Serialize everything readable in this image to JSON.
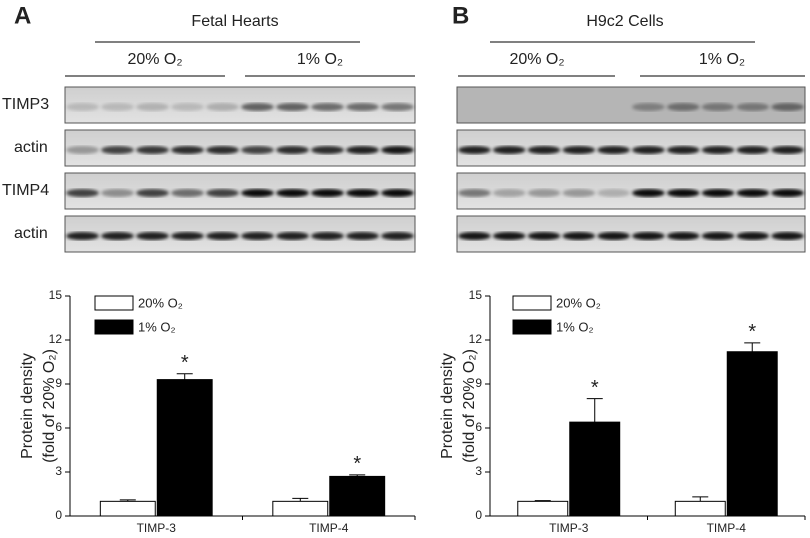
{
  "figure": {
    "panels": [
      {
        "label": "A",
        "title": "Fetal Hearts",
        "groups": [
          "20% O₂",
          "1% O₂"
        ],
        "blots": [
          "TIMP3",
          "actin",
          "TIMP4",
          "actin"
        ]
      },
      {
        "label": "B",
        "title": "H9c2 Cells",
        "groups": [
          "20% O₂",
          "1% O₂"
        ]
      }
    ]
  },
  "chart_data": [
    {
      "type": "bar",
      "ylabel": [
        "Protein density",
        "(fold of 20% O₂)"
      ],
      "categories": [
        "TIMP-3",
        "TIMP-4"
      ],
      "series": [
        {
          "name": "20% O₂",
          "color": "#ffffff",
          "values": [
            1.0,
            1.0
          ],
          "errors": [
            0.1,
            0.2
          ]
        },
        {
          "name": "1% O₂",
          "color": "#000000",
          "values": [
            9.3,
            2.7
          ],
          "errors": [
            0.4,
            0.1
          ],
          "annotations": [
            "*",
            "*"
          ]
        }
      ],
      "ylim": [
        0,
        15
      ],
      "yticks": [
        0,
        3,
        6,
        9,
        12,
        15
      ]
    },
    {
      "type": "bar",
      "ylabel": [
        "Protein density",
        "(fold of 20% O₂)"
      ],
      "categories": [
        "TIMP-3",
        "TIMP-4"
      ],
      "series": [
        {
          "name": "20% O₂",
          "color": "#ffffff",
          "values": [
            1.0,
            1.0
          ],
          "errors": [
            0.05,
            0.3
          ]
        },
        {
          "name": "1% O₂",
          "color": "#000000",
          "values": [
            6.4,
            11.2
          ],
          "errors": [
            1.6,
            0.6
          ],
          "annotations": [
            "*",
            "*"
          ]
        }
      ],
      "ylim": [
        0,
        15
      ],
      "yticks": [
        0,
        3,
        6,
        9,
        12,
        15
      ]
    }
  ]
}
